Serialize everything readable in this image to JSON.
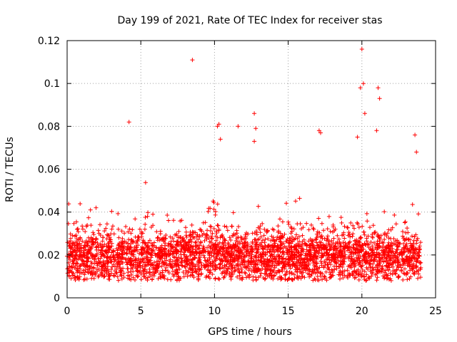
{
  "chart_data": {
    "type": "scatter",
    "title": "Day 199 of 2021, Rate Of TEC Index for receiver stas",
    "xlabel": "GPS time / hours",
    "ylabel": "ROTI / TECUs",
    "xlim": [
      0,
      25
    ],
    "ylim": [
      0,
      0.12
    ],
    "xticks": [
      0,
      5,
      10,
      15,
      20,
      25
    ],
    "xtick_labels": [
      "0",
      "5",
      "10",
      "15",
      "20",
      "25"
    ],
    "yticks": [
      0,
      0.02,
      0.04,
      0.06,
      0.08,
      0.1,
      0.12
    ],
    "ytick_labels": [
      "0",
      "0.02",
      "0.04",
      "0.06",
      "0.08",
      "0.1",
      "0.12"
    ],
    "grid": true,
    "marker": "plus",
    "color": "#ff0000",
    "series": [
      {
        "name": "stas",
        "x_range": [
          0,
          24
        ],
        "baseline_band": [
          0.008,
          0.03
        ],
        "notable_points": [
          {
            "x": 4.2,
            "y": 0.082
          },
          {
            "x": 8.5,
            "y": 0.111
          },
          {
            "x": 10.2,
            "y": 0.08
          },
          {
            "x": 10.3,
            "y": 0.081
          },
          {
            "x": 10.4,
            "y": 0.074
          },
          {
            "x": 11.6,
            "y": 0.08
          },
          {
            "x": 12.7,
            "y": 0.086
          },
          {
            "x": 12.8,
            "y": 0.079
          },
          {
            "x": 12.7,
            "y": 0.073
          },
          {
            "x": 17.1,
            "y": 0.078
          },
          {
            "x": 17.2,
            "y": 0.077
          },
          {
            "x": 19.7,
            "y": 0.075
          },
          {
            "x": 20.0,
            "y": 0.116
          },
          {
            "x": 20.1,
            "y": 0.1
          },
          {
            "x": 19.9,
            "y": 0.098
          },
          {
            "x": 20.2,
            "y": 0.086
          },
          {
            "x": 21.1,
            "y": 0.098
          },
          {
            "x": 21.2,
            "y": 0.093
          },
          {
            "x": 21.0,
            "y": 0.078
          },
          {
            "x": 23.6,
            "y": 0.076
          },
          {
            "x": 23.7,
            "y": 0.068
          }
        ]
      }
    ]
  }
}
